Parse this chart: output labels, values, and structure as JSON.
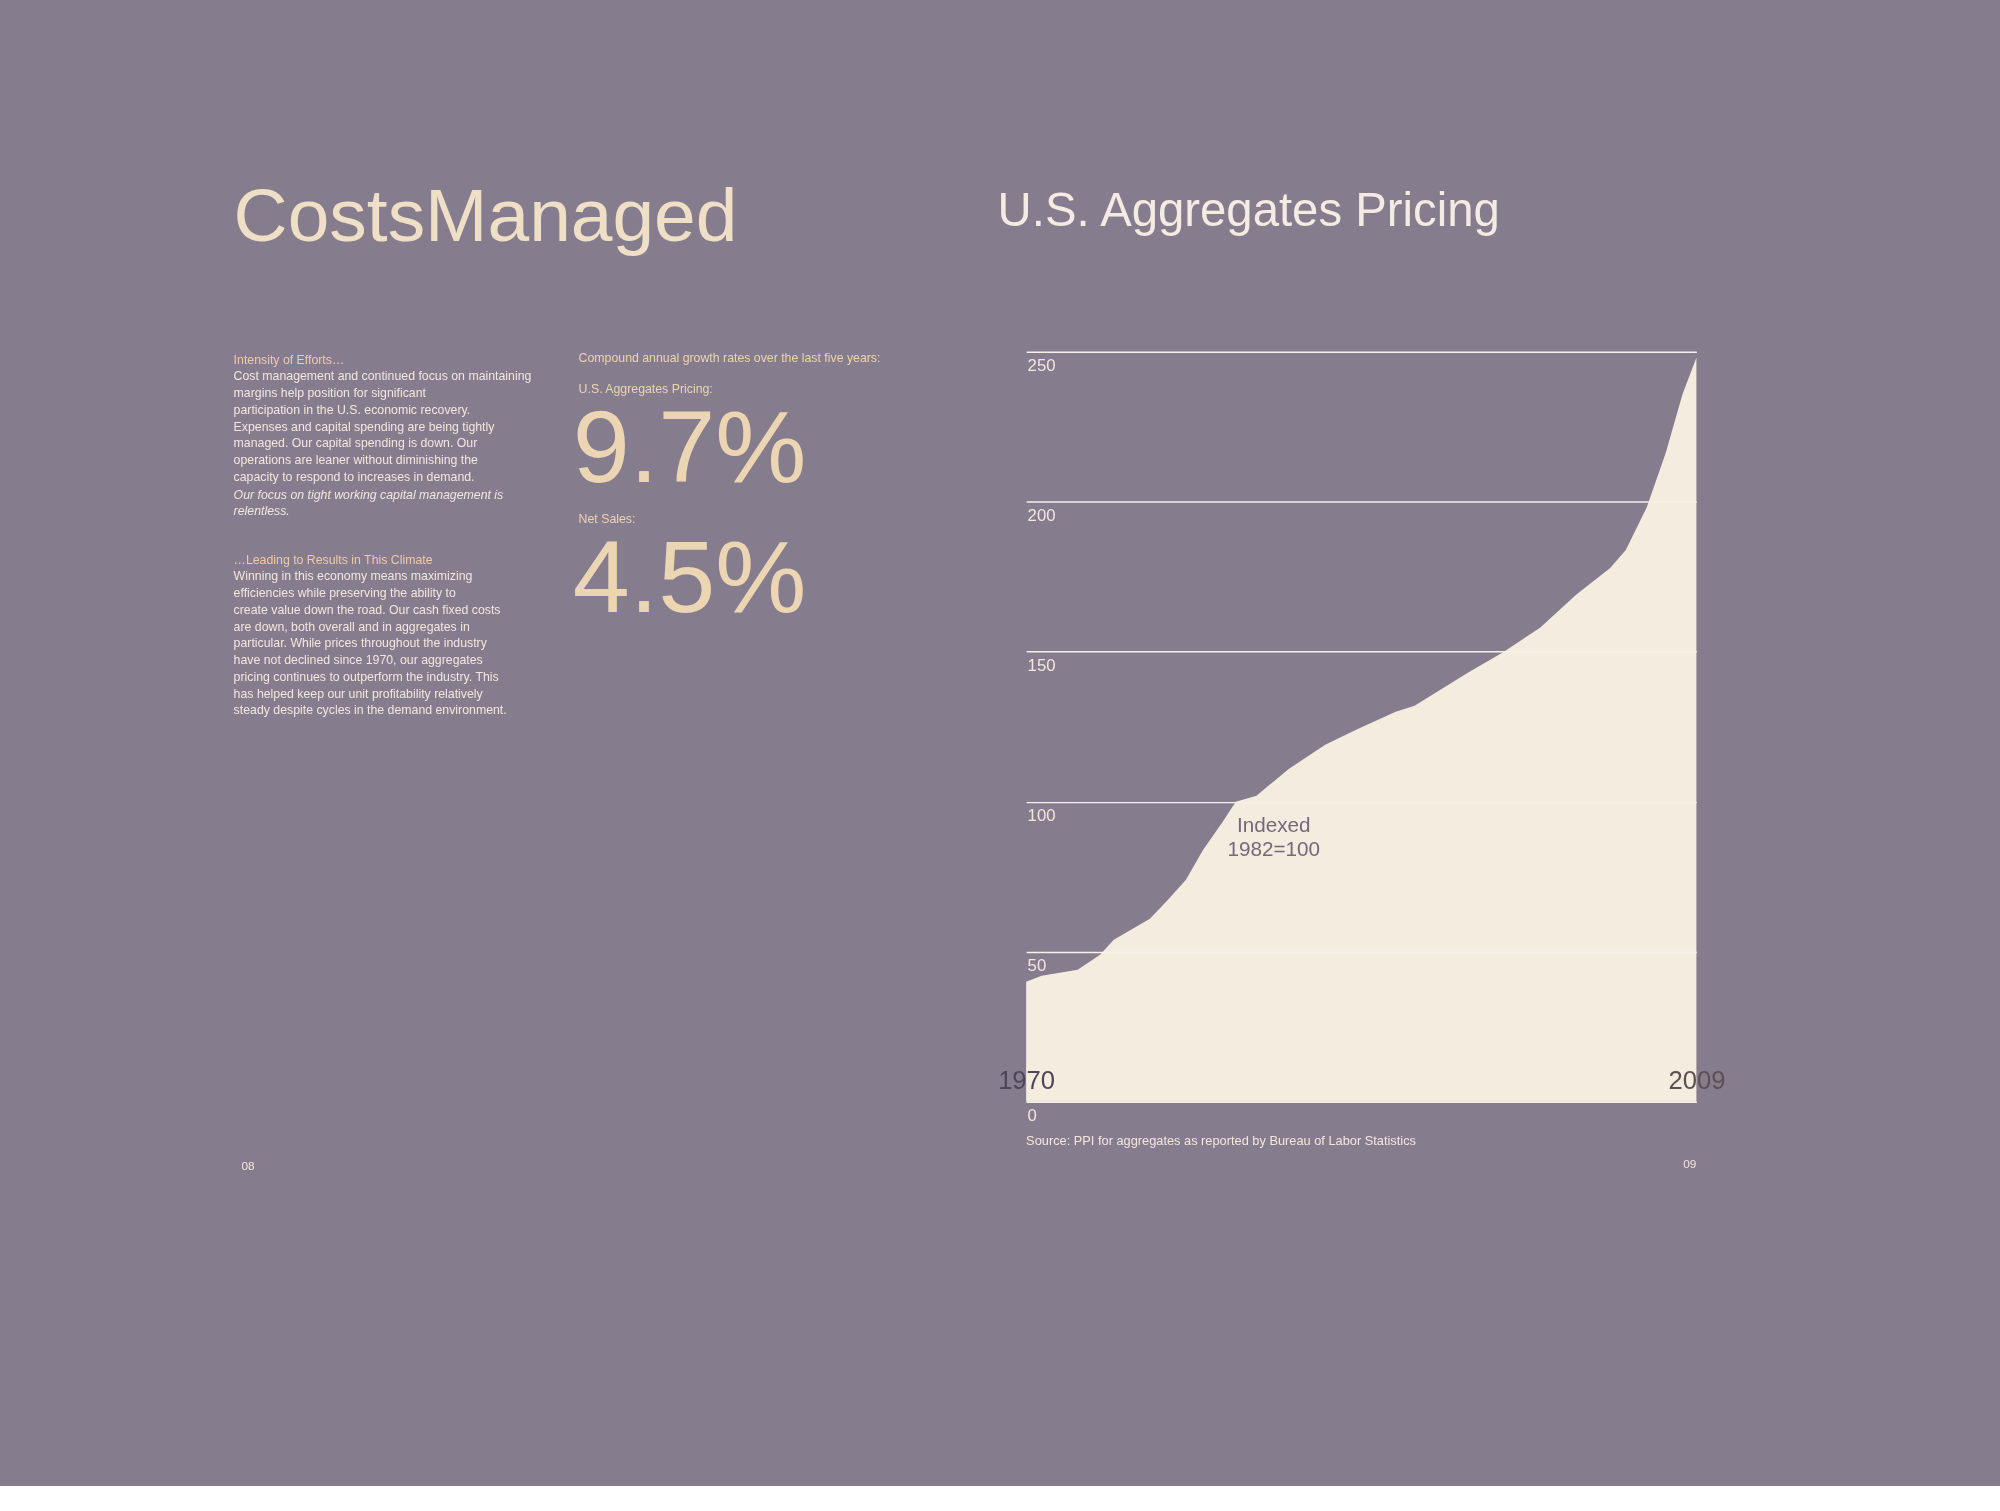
{
  "chart_data": [
    {
      "type": "other",
      "title": "CostsManaged",
      "annotations": [
        "Intensity of Efforts…",
        "Cost management and continued focus on maintaining margins help position for significant participation in the U.S. economic recovery. Expenses and capital spending are being tightly managed. Our capital spending is down. Our operations are leaner without diminishing the capacity to respond to increases in demand.",
        "Our focus on tight working capital management is relentless.",
        "…Leading to Results in This Climate",
        "Winning in this economy means maximizing efficiencies while preserving the ability to create value down the road. Our cash fixed costs are down, both overall and in aggregates in particular. While prices throughout the industry have not declined since 1970, our aggregates pricing continues to outperform the industry. This has helped keep our unit profitability relatively steady despite cycles in the demand environment.",
        "Compound annual growth rates over the last five years:",
        "U.S. Aggregates Pricing:",
        "9.7%",
        "Net Sales:",
        "4.5%",
        "08"
      ]
    },
    {
      "type": "area",
      "title": "U.S. Aggregates Pricing",
      "color": "#f4ecdf",
      "x": [
        1970.0,
        1970.9,
        1973.0,
        1974.3,
        1975.1,
        1977.2,
        1978.2,
        1979.3,
        1980.3,
        1981.4,
        1982.2,
        1983.4,
        1985.3,
        1987.4,
        1989.2,
        1991.5,
        1992.6,
        1995.7,
        1997.8,
        1999.9,
        2002.0,
        2004.0,
        2004.9,
        2006.1,
        2007.2,
        2008.2,
        2009.0
      ],
      "values": [
        40,
        42,
        44,
        49,
        54,
        61,
        67,
        74,
        84,
        93,
        100,
        102,
        111,
        119,
        124,
        130,
        132,
        143,
        150,
        158,
        169,
        178,
        184,
        198,
        216,
        236,
        248
      ],
      "xlim": [
        1970,
        2009
      ],
      "xticks": [
        1970,
        2009
      ],
      "ylim": [
        0,
        250
      ],
      "yticks": [
        0,
        50,
        100,
        150,
        200,
        250
      ],
      "grid": "y",
      "annotations": [
        {
          "text": "Indexed 1982=100",
          "x": 1982,
          "y": 100
        },
        "Source: PPI for aggregates as reported by Bureau of Labor Statistics",
        "09"
      ]
    }
  ]
}
